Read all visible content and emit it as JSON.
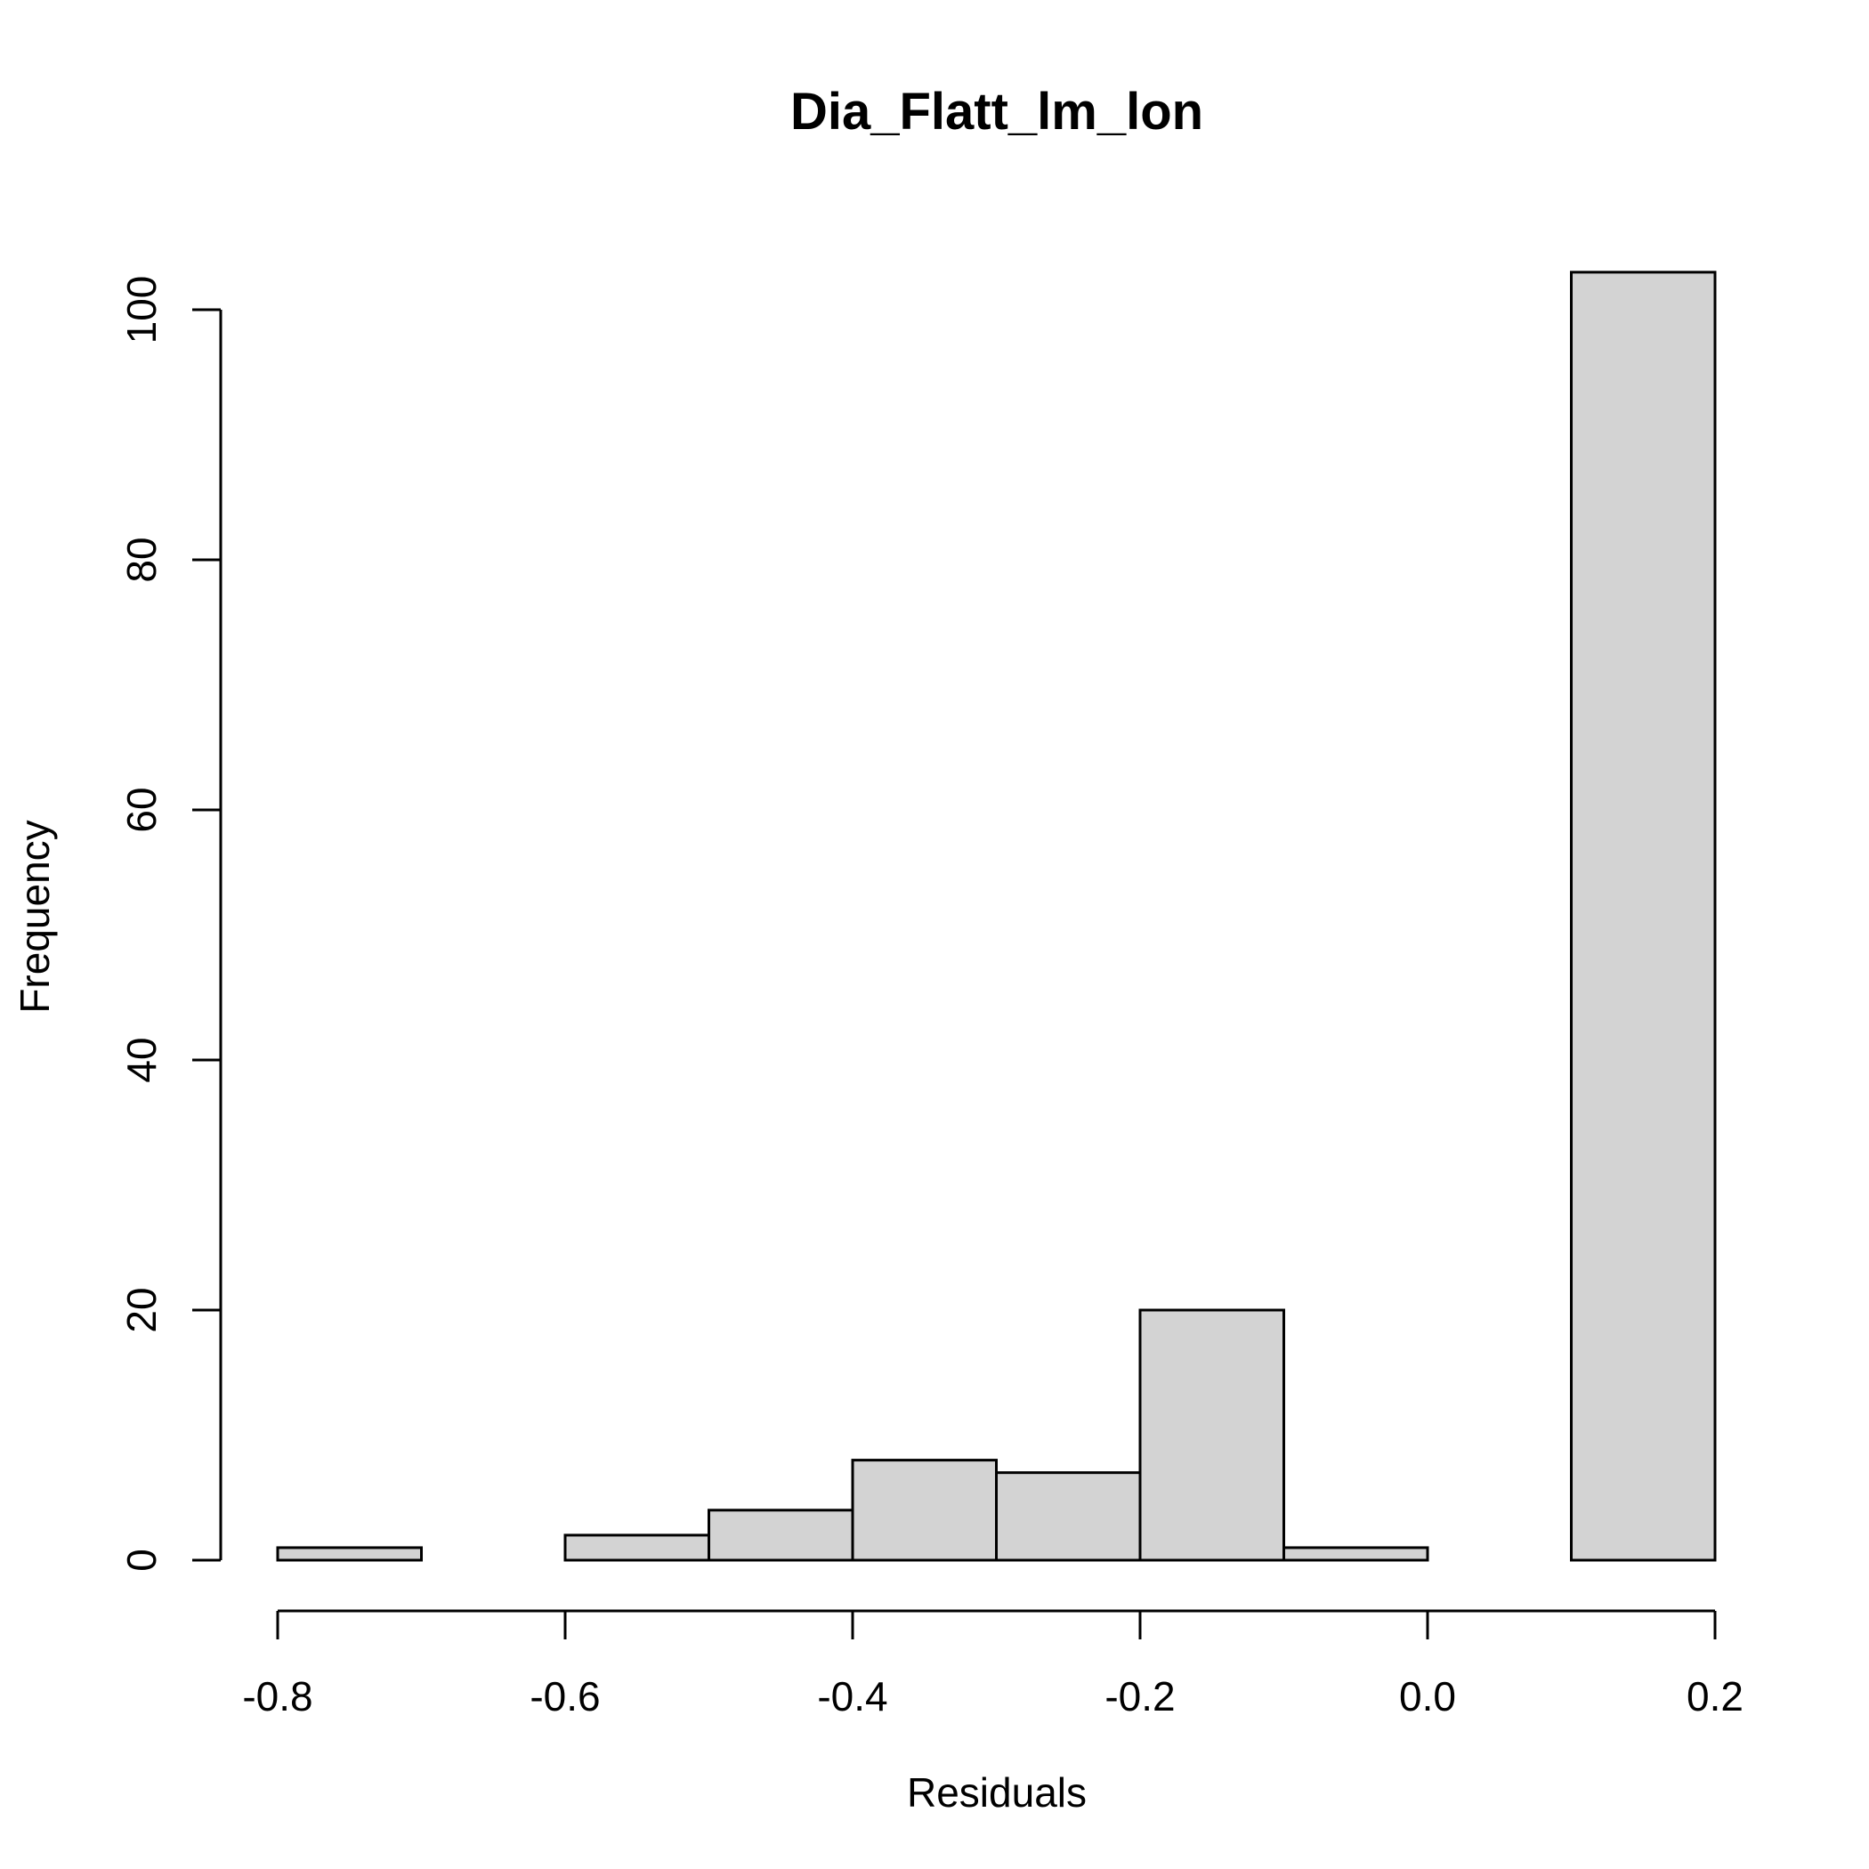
{
  "chart_data": {
    "type": "bar",
    "title": "Dia_Flatt_lm_lon",
    "xlabel": "Residuals",
    "ylabel": "Frequency",
    "bins": [
      {
        "from": -0.8,
        "to": -0.7,
        "count": 1
      },
      {
        "from": -0.7,
        "to": -0.6,
        "count": 0
      },
      {
        "from": -0.6,
        "to": -0.5,
        "count": 2
      },
      {
        "from": -0.5,
        "to": -0.4,
        "count": 4
      },
      {
        "from": -0.4,
        "to": -0.3,
        "count": 8
      },
      {
        "from": -0.3,
        "to": -0.2,
        "count": 7
      },
      {
        "from": -0.2,
        "to": -0.1,
        "count": 20
      },
      {
        "from": -0.1,
        "to": 0.0,
        "count": 1
      },
      {
        "from": 0.0,
        "to": 0.1,
        "count": 0
      },
      {
        "from": 0.1,
        "to": 0.2,
        "count": 103
      }
    ],
    "xticks": [
      {
        "value": -0.8,
        "label": "-0.8"
      },
      {
        "value": -0.6,
        "label": "-0.6"
      },
      {
        "value": -0.4,
        "label": "-0.4"
      },
      {
        "value": -0.2,
        "label": "-0.2"
      },
      {
        "value": 0.0,
        "label": "0.0"
      },
      {
        "value": 0.2,
        "label": "0.2"
      }
    ],
    "yticks": [
      {
        "value": 0,
        "label": "0"
      },
      {
        "value": 20,
        "label": "20"
      },
      {
        "value": 40,
        "label": "40"
      },
      {
        "value": 60,
        "label": "60"
      },
      {
        "value": 80,
        "label": "80"
      },
      {
        "value": 100,
        "label": "100"
      }
    ],
    "xlim": [
      -0.8,
      0.2
    ],
    "ylim": [
      0,
      100
    ],
    "grid": false,
    "bar_fill": "#d3d3d3",
    "bar_stroke": "#000000"
  }
}
